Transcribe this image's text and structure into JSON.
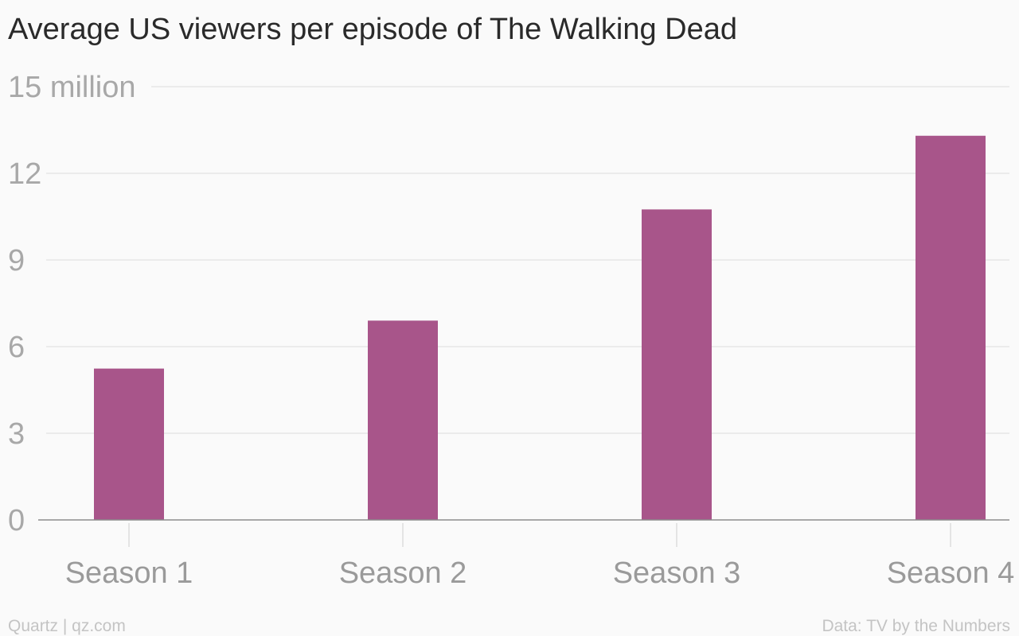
{
  "chart_data": {
    "type": "bar",
    "title": "Average US viewers per episode of The Walking Dead",
    "categories": [
      "Season 1",
      "Season 2",
      "Season 3",
      "Season 4"
    ],
    "values": [
      5.24,
      6.9,
      10.75,
      13.3
    ],
    "y_unit": "million",
    "ylim": [
      0,
      15
    ],
    "yticks": [
      0,
      3,
      6,
      9,
      12,
      15
    ],
    "ytick_labels": [
      "0",
      "3",
      "6",
      "9",
      "12",
      "15 million"
    ],
    "xlabel": "",
    "ylabel": "",
    "grid": true,
    "legend": "none",
    "bar_color": "#a8558a"
  },
  "footer": {
    "source_left": "Quartz | qz.com",
    "source_right": "Data: TV by the Numbers"
  }
}
